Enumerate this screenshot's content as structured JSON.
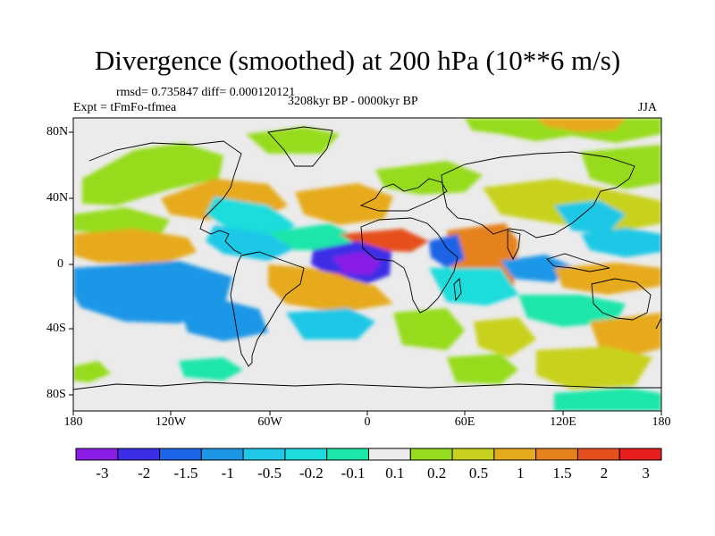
{
  "title": "Divergence (smoothed) at 200 hPa (10**6 m/s)",
  "stats": "rmsd= 0.735847 diff= 0.000120121",
  "experiment": "Expt = tFmFo-tfmea",
  "period": "3208kyr BP - 0000kyr BP",
  "season": "JJA",
  "y_ticks": [
    "80N",
    "40N",
    "0",
    "40S",
    "80S"
  ],
  "x_ticks": [
    "180",
    "120W",
    "60W",
    "0",
    "60E",
    "120E",
    "180"
  ],
  "colorbar": {
    "labels": [
      "-3",
      "-2",
      "-1.5",
      "-1",
      "-0.5",
      "-0.2",
      "-0.1",
      "0.1",
      "0.2",
      "0.5",
      "1",
      "1.5",
      "2",
      "3"
    ],
    "colors": [
      "#8a1ee6",
      "#3c2ee6",
      "#1e64e6",
      "#1e96e6",
      "#1ec8e6",
      "#1edcdc",
      "#1ee6aa",
      "#ebebeb",
      "#96dc1e",
      "#c8d21e",
      "#e6aa1e",
      "#e6821e",
      "#e6501e",
      "#e61e1e"
    ]
  },
  "map": {
    "background": "#ebebeb",
    "palette": {
      "purple": "#8a1ee6",
      "blue": "#3c2ee6",
      "midblue": "#1e64e6",
      "lightblue": "#1e96e6",
      "cyan": "#1ec8e6",
      "teal": "#1edcdc",
      "seagreen": "#1ee6aa",
      "green": "#96dc1e",
      "yellowgreen": "#c8d21e",
      "orange": "#e6aa1e",
      "darkorange": "#e6821e",
      "redorange": "#e6501e",
      "red": "#e61e1e"
    }
  }
}
